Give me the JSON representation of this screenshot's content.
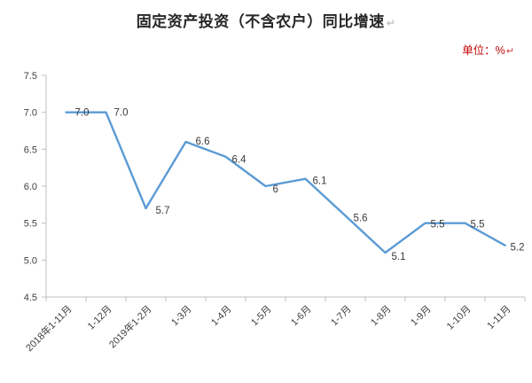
{
  "page": {
    "title": "固定资产投资（不含农户）同比增速",
    "unit_label": "单位：%",
    "return_mark": "↵"
  },
  "colors": {
    "line": "#5B9BD5",
    "title_text": "#262626",
    "unit_text": "#C00000",
    "axis_line": "#BFBFBF",
    "tick_text": "#404040",
    "data_label_text": "#3B3B3B"
  },
  "chart_data": {
    "type": "line",
    "title": "固定资产投资（不含农户）同比增速",
    "subtitle": "单位：%",
    "categories": [
      "2018年1-11月",
      "1-12月",
      "2019年1-2月",
      "1-3月",
      "1-4月",
      "1-5月",
      "1-6月",
      "1-7月",
      "1-8月",
      "1-9月",
      "1-10月",
      "1-11月"
    ],
    "values": [
      7.0,
      7.0,
      5.7,
      6.6,
      6.4,
      6.0,
      6.1,
      5.6,
      5.1,
      5.5,
      5.5,
      5.2
    ],
    "value_labels": [
      "7.0",
      "7.0",
      "5.7",
      "6.6",
      "6.4",
      "6",
      "6.1",
      "5.6",
      "5.1",
      "5.5",
      "5.5",
      "5.2"
    ],
    "xlabel": "",
    "ylabel": "",
    "ylim": [
      4.5,
      7.5
    ],
    "ytick_step": 0.5,
    "grid": false,
    "legend": "none",
    "data_labels": true
  }
}
